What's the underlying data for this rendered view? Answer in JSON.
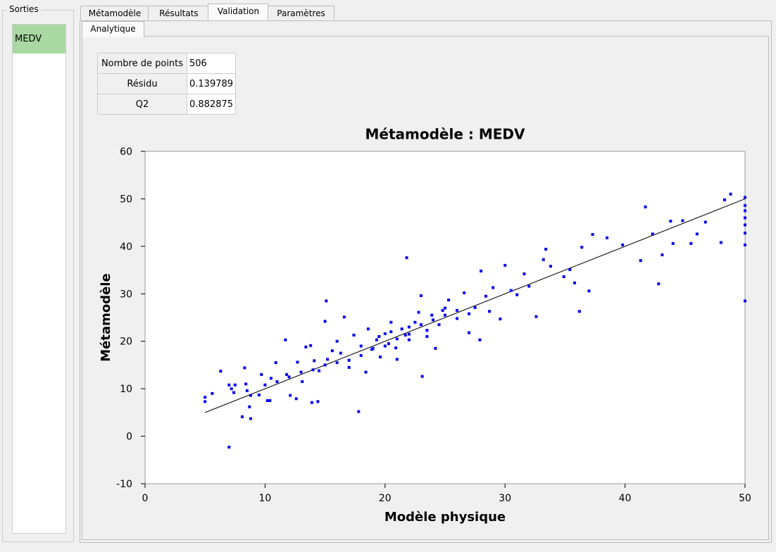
{
  "sidebar": {
    "title": "Sorties",
    "items": [
      "MEDV"
    ]
  },
  "tabs": [
    "Métamodèle",
    "Résultats",
    "Validation",
    "Paramètres"
  ],
  "subtabs": [
    "Analytique"
  ],
  "table": {
    "rows": [
      [
        "Nombre de points",
        "506"
      ],
      [
        "Résidu",
        "0.139789"
      ],
      [
        "Q2",
        "0.882875"
      ]
    ]
  },
  "chart_data": {
    "type": "scatter",
    "title": "Métamodèle : MEDV",
    "x_label": "Modèle physique",
    "y_label": "Métamodèle",
    "color": "#0000ee",
    "x": [
      5,
      5,
      5.6,
      6.3,
      7,
      7,
      7.2,
      7.5,
      7.4,
      8.1,
      8.3,
      8.4,
      8.5,
      8.7,
      8.8,
      8.8,
      9.5,
      9.7,
      10,
      10.2,
      10.4,
      10.5,
      10.9,
      11,
      11.7,
      11.8,
      12.1,
      12.6,
      12.7,
      13.1,
      13.4,
      13.8,
      13.9,
      14.1,
      14.4,
      14.5,
      15,
      15.1,
      15.2,
      15.6,
      16,
      16.3,
      16.6,
      17,
      17.4,
      17.8,
      18,
      18.4,
      18.6,
      18.9,
      19.3,
      19.6,
      20,
      20.3,
      20.5,
      20.9,
      21,
      21.4,
      21.7,
      21.8,
      22,
      22.5,
      22.8,
      23,
      23.1,
      23.5,
      23.9,
      24.2,
      24.5,
      24.8,
      25,
      25.3,
      26,
      26.6,
      27,
      27.5,
      27.9,
      28,
      28.4,
      28.7,
      29,
      29.6,
      30,
      30.5,
      31,
      31.6,
      32,
      32.6,
      33.2,
      33.4,
      33.8,
      34.9,
      35.4,
      35.8,
      36.2,
      36.4,
      37,
      37.3,
      38.5,
      39.8,
      41.3,
      41.7,
      42.3,
      42.8,
      43.1,
      43.8,
      44,
      44.8,
      45.5,
      46,
      46.7,
      48,
      48.3,
      48.8,
      50,
      50,
      50,
      50,
      50,
      50,
      50,
      50,
      19.5,
      20.5,
      21,
      22,
      23,
      24,
      19,
      20,
      18,
      17,
      16,
      15,
      14,
      13,
      12,
      25,
      26,
      27,
      22,
      23.5
    ],
    "values": [
      8.2,
      7.3,
      9,
      13.7,
      10.8,
      -2.3,
      10,
      10.8,
      9.2,
      4.1,
      14.4,
      11,
      9.6,
      6.2,
      3.7,
      8.6,
      8.7,
      13,
      10.8,
      7.5,
      7.5,
      12.2,
      15.5,
      11.5,
      20.3,
      13,
      8.6,
      7.9,
      15.6,
      11.5,
      18.8,
      19.1,
      7.1,
      15.9,
      7.3,
      13.8,
      24.2,
      28.5,
      16.2,
      18,
      20,
      17.5,
      25.1,
      14.5,
      21.3,
      5.2,
      19,
      13.5,
      22.6,
      18.3,
      20.3,
      16.7,
      21.6,
      19.5,
      24,
      18.6,
      16.2,
      22.6,
      21.3,
      37.6,
      20.3,
      24,
      26.1,
      29.6,
      12.6,
      22.3,
      25.5,
      18.5,
      23.5,
      26.5,
      27,
      28.7,
      24.8,
      30.2,
      21.8,
      27.1,
      20.3,
      34.8,
      29.5,
      26.3,
      31.3,
      24.7,
      36,
      30.7,
      29.8,
      34.2,
      31.6,
      25.2,
      37.2,
      39.4,
      35.8,
      33.6,
      35.1,
      32.3,
      26.3,
      39.8,
      30.6,
      42.5,
      41.8,
      40.3,
      37,
      48.3,
      42.6,
      32.1,
      38.2,
      45.3,
      40.6,
      45.4,
      40.6,
      42.6,
      45.1,
      40.8,
      49.8,
      51,
      50.3,
      48.6,
      47.5,
      46,
      44.5,
      42.8,
      40.3,
      28.5,
      21,
      22,
      20.5,
      23,
      23.5,
      24.5,
      18.5,
      19,
      17,
      16,
      15.5,
      15,
      14,
      13.5,
      12.5,
      25.5,
      26.5,
      25.8,
      21.5,
      21
    ],
    "reference_line": {
      "x": [
        5,
        50
      ],
      "values": [
        5,
        50
      ],
      "color": "#000000"
    },
    "xlim": [
      0,
      50
    ],
    "ylim": [
      -10,
      60
    ],
    "xticks": [
      0,
      10,
      20,
      30,
      40,
      50
    ],
    "yticks": [
      -10,
      0,
      10,
      20,
      30,
      40,
      50,
      60
    ]
  }
}
